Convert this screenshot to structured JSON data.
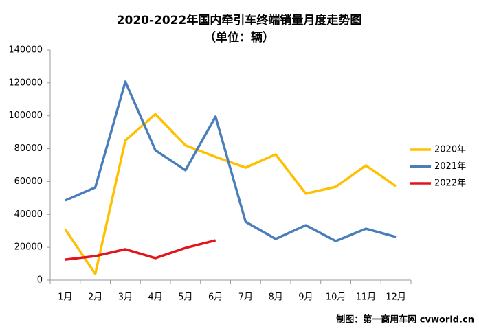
{
  "chart_data": {
    "type": "line",
    "title": "2020-2022年国内牵引车终端销量月度走势图",
    "subtitle": "（单位：辆）",
    "footer": "制图：第一商用车网 cvworld.cn",
    "categories": [
      "1月",
      "2月",
      "3月",
      "4月",
      "5月",
      "6月",
      "7月",
      "8月",
      "9月",
      "10月",
      "11月",
      "12月"
    ],
    "series": [
      {
        "name": "2020年",
        "color": "#ffc000",
        "values": [
          31000,
          3800,
          85000,
          101000,
          82000,
          75000,
          68500,
          76500,
          52700,
          56800,
          69800,
          57200
        ]
      },
      {
        "name": "2021年",
        "color": "#4a7ebb",
        "values": [
          48500,
          56400,
          120800,
          79000,
          66900,
          99500,
          35500,
          25100,
          33400,
          23800,
          31300,
          26300
        ]
      },
      {
        "name": "2022年",
        "color": "#e3151a",
        "values": [
          12500,
          14600,
          18800,
          13400,
          19600,
          24200,
          null,
          null,
          null,
          null,
          null,
          null
        ]
      }
    ],
    "ylim": [
      0,
      140000
    ],
    "yticks": [
      0,
      20000,
      40000,
      60000,
      80000,
      100000,
      120000,
      140000
    ],
    "grid": false,
    "legend": "right"
  }
}
